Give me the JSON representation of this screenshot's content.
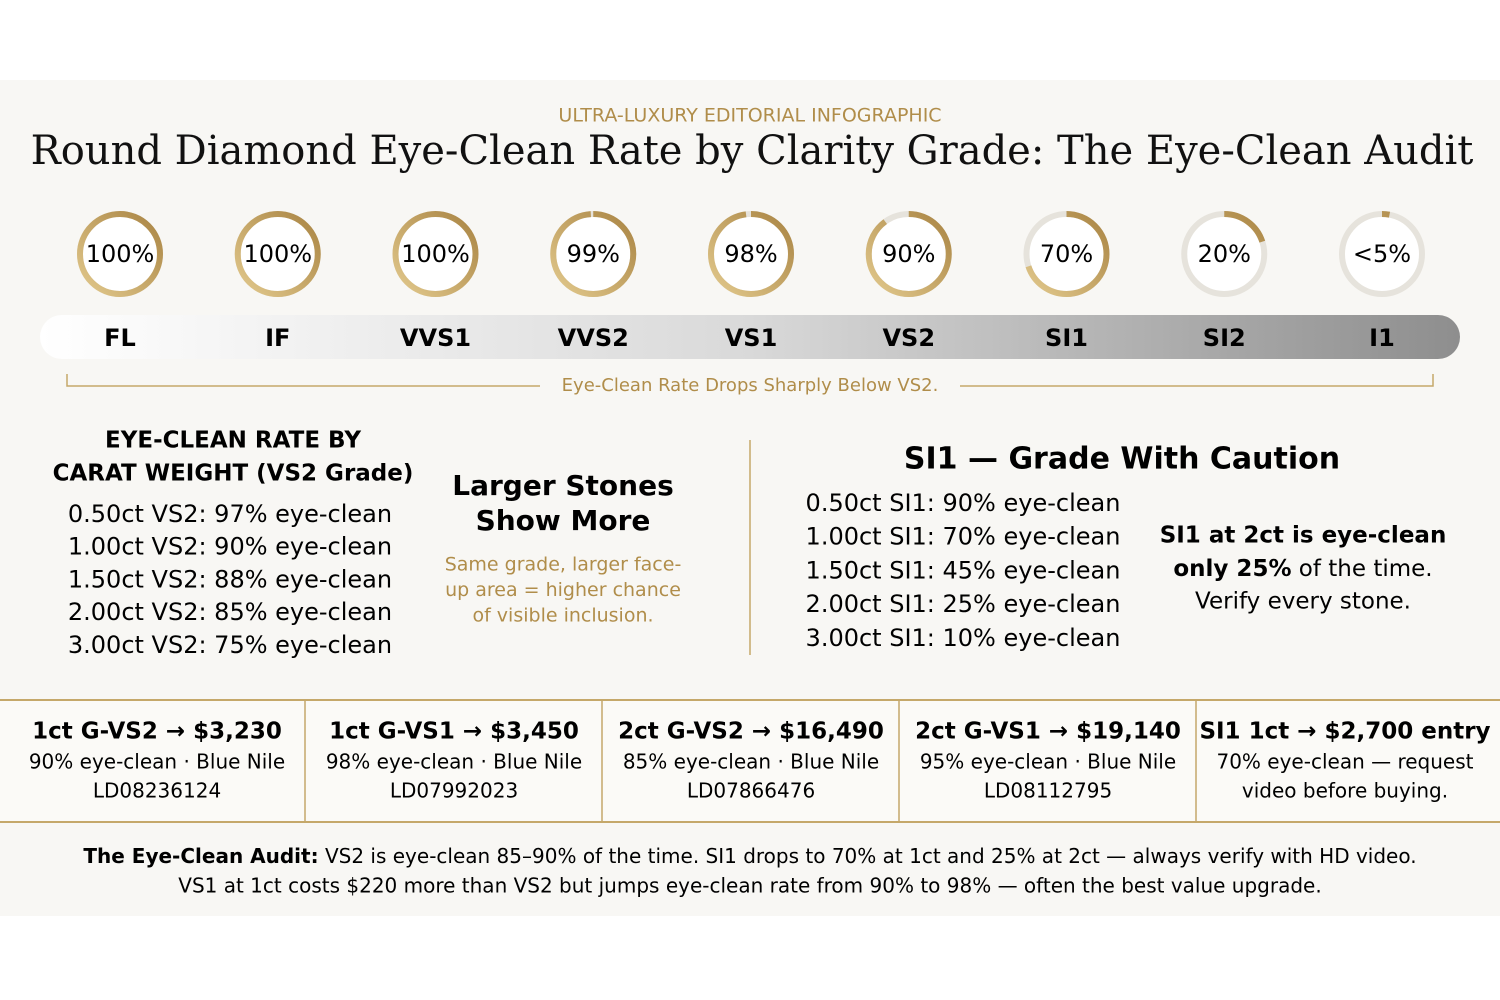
{
  "header": {
    "kicker": "ULTRA-LUXURY EDITORIAL INFOGRAPHIC",
    "title": "Round Diamond Eye-Clean Rate by Clarity Grade: The Eye-Clean Audit"
  },
  "rings": {
    "grades": [
      "FL",
      "IF",
      "VVS1",
      "VVS2",
      "VS1",
      "VS2",
      "SI1",
      "SI2",
      "I1"
    ],
    "values": [
      100,
      100,
      100,
      99,
      98,
      90,
      70,
      20,
      3
    ],
    "value_labels": [
      "100%",
      "100%",
      "100%",
      "99%",
      "98%",
      "90%",
      "70%",
      "20%",
      "<5%"
    ],
    "caption": "Eye-Clean Rate Drops Sharply Below VS2."
  },
  "carat": {
    "heading_line1": "EYE-CLEAN RATE BY",
    "heading_line2": "CARAT WEIGHT (VS2 Grade)",
    "rows": [
      "0.50ct VS2: 97% eye-clean",
      "1.00ct VS2: 90% eye-clean",
      "1.50ct VS2: 88% eye-clean",
      "2.00ct VS2: 85% eye-clean",
      "3.00ct VS2: 75% eye-clean"
    ]
  },
  "larger": {
    "heading_line1": "Larger Stones",
    "heading_line2": "Show More",
    "note": [
      "Same grade, larger face-",
      "up area = higher chance",
      "of visible inclusion."
    ]
  },
  "si1": {
    "heading": "SI1 — Grade With Caution",
    "rows": [
      "0.50ct SI1: 90% eye-clean",
      "1.00ct SI1: 70% eye-clean",
      "1.50ct SI1: 45% eye-clean",
      "2.00ct SI1: 25% eye-clean",
      "3.00ct SI1: 10% eye-clean"
    ],
    "callout_line1": "SI1 at 2ct is eye-clean",
    "callout_line2_bold": "only 25%",
    "callout_line2_rest": " of the time.",
    "callout_line3": "Verify every stone."
  },
  "cards": [
    [
      "1ct G-VS2 → $3,230",
      "90% eye-clean · Blue Nile",
      "LD08236124"
    ],
    [
      "1ct G-VS1 → $3,450",
      "98% eye-clean · Blue Nile",
      "LD07992023"
    ],
    [
      "2ct G-VS2 → $16,490",
      "85% eye-clean · Blue Nile",
      "LD07866476"
    ],
    [
      "2ct G-VS1 → $19,140",
      "95% eye-clean · Blue Nile",
      "LD08112795"
    ],
    [
      "SI1 1ct → $2,700 entry",
      "70% eye-clean — request",
      "video before buying."
    ]
  ],
  "footer": {
    "bold": "The Eye-Clean Audit:",
    "line1_rest": " VS2 is eye-clean 85–90% of the time. SI1 drops to 70% at 1ct and 25% at 2ct — always verify with HD video.",
    "line2": "VS1 at 1ct costs $220 more than VS2 but jumps eye-clean rate from 90% to 98% — often the best value upgrade."
  }
}
